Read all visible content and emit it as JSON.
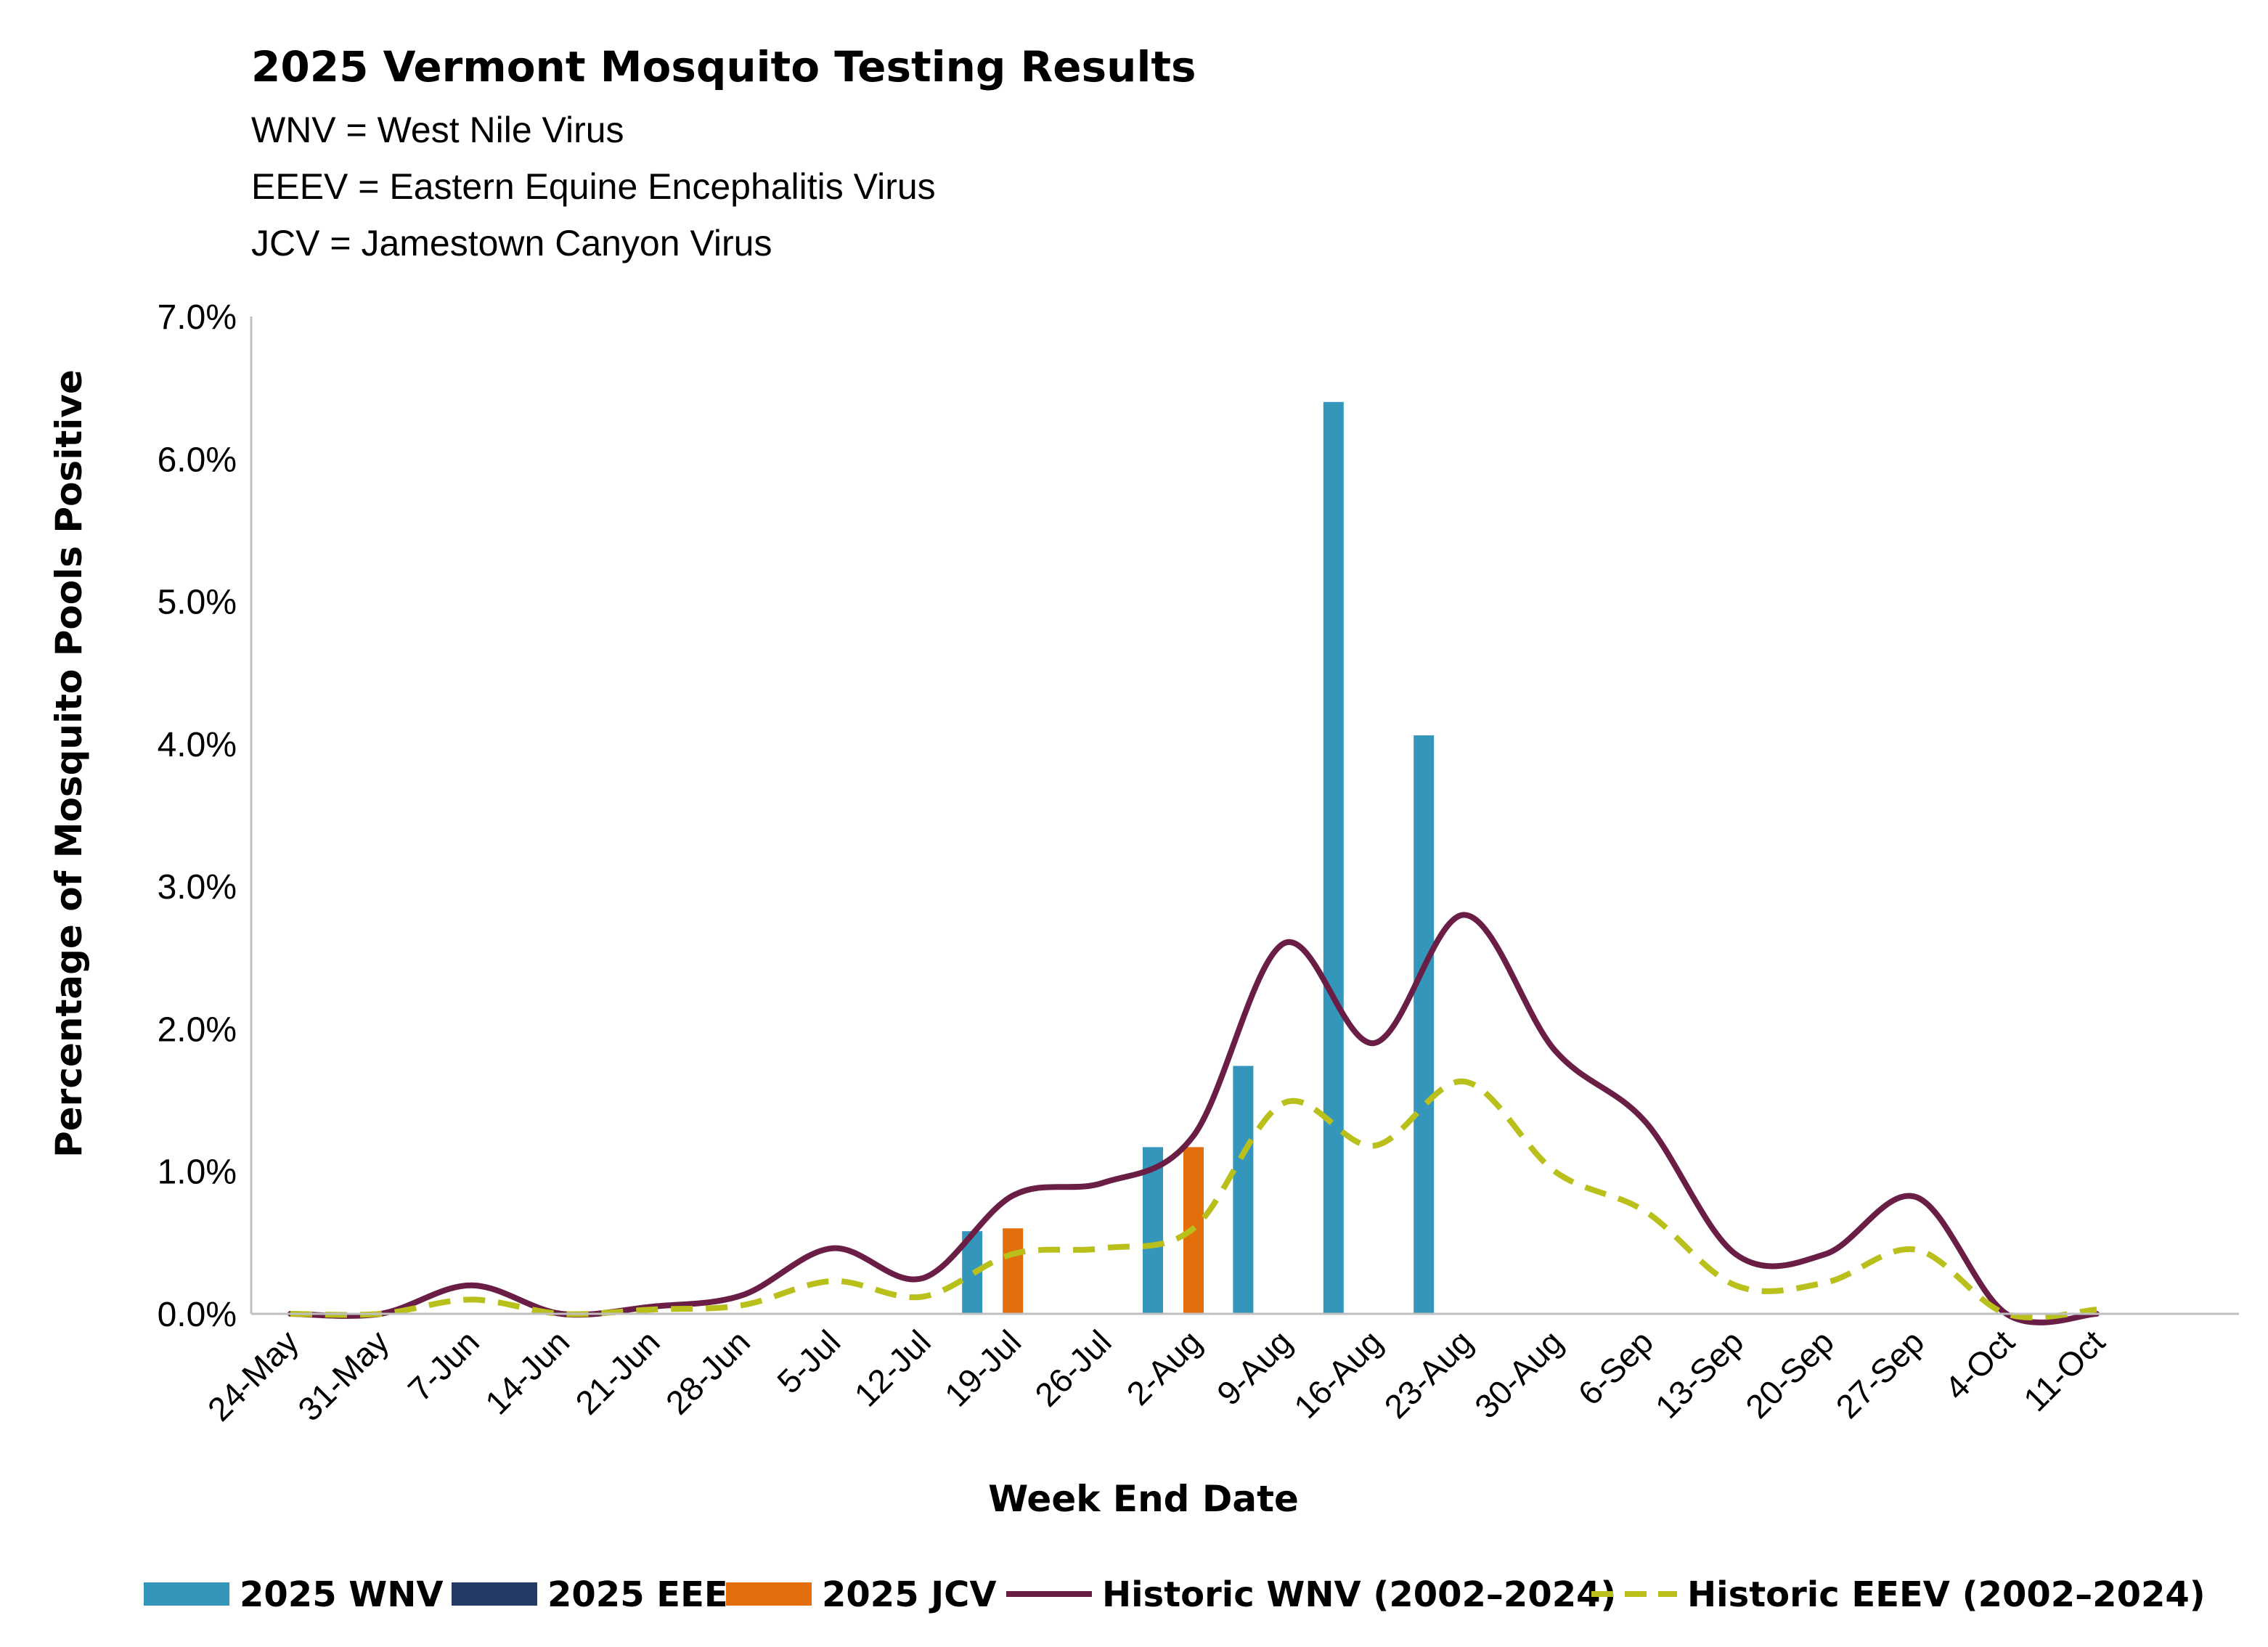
{
  "chart_data": {
    "type": "bar",
    "title": "2025 Vermont Mosquito Testing Results",
    "notes": [
      "WNV = West Nile Virus",
      "EEEV = Eastern Equine Encephalitis Virus",
      "JCV = Jamestown Canyon Virus"
    ],
    "xlabel": "Week End Date",
    "ylabel": "Percentage of Mosquito Pools Positive",
    "ylim": [
      0,
      0.07
    ],
    "yticks": [
      "0.0%",
      "1.0%",
      "2.0%",
      "3.0%",
      "4.0%",
      "5.0%",
      "6.0%",
      "7.0%"
    ],
    "categories": [
      "24-May",
      "31-May",
      "7-Jun",
      "14-Jun",
      "21-Jun",
      "28-Jun",
      "5-Jul",
      "12-Jul",
      "19-Jul",
      "26-Jul",
      "2-Aug",
      "9-Aug",
      "16-Aug",
      "23-Aug",
      "30-Aug",
      "6-Sep",
      "13-Sep",
      "20-Sep",
      "27-Sep",
      "4-Oct",
      "11-Oct"
    ],
    "grid": false,
    "legend": "bottom",
    "series": [
      {
        "name": "2025 WNV",
        "kind": "bar",
        "color": "#3596bc",
        "values": [
          0,
          0,
          0,
          0,
          0,
          0,
          0,
          0,
          0.0058,
          0,
          0.0117,
          0.0174,
          0.064,
          0.0406,
          0,
          0,
          0,
          0,
          0,
          0,
          0
        ]
      },
      {
        "name": "2025 EEE",
        "kind": "bar",
        "color": "#223a64",
        "values": [
          0,
          0,
          0,
          0,
          0,
          0,
          0,
          0,
          0,
          0,
          0,
          0,
          0,
          0,
          0,
          0,
          0,
          0,
          0,
          0,
          0
        ]
      },
      {
        "name": "2025 JCV",
        "kind": "bar",
        "color": "#e36e0c",
        "values": [
          0,
          0,
          0,
          0,
          0,
          0,
          0,
          0,
          0.006,
          0,
          0.0117,
          0,
          0,
          0,
          0,
          0,
          0,
          0,
          0,
          0,
          0
        ]
      },
      {
        "name": "Historic WNV (2002–2024)",
        "kind": "line",
        "style": "solid",
        "color": "#6b1e45",
        "values": [
          0,
          0,
          0.002,
          0,
          0.0005,
          0.0013,
          0.0046,
          0.0025,
          0.0083,
          0.0092,
          0.0125,
          0.026,
          0.019,
          0.028,
          0.0185,
          0.0135,
          0.0042,
          0.0042,
          0.0082,
          0,
          0
        ]
      },
      {
        "name": "Historic EEEV (2002–2024)",
        "kind": "line",
        "style": "dashed",
        "color": "#b9c01c",
        "values": [
          0,
          0,
          0.001,
          0,
          0.0003,
          0.0006,
          0.0023,
          0.0012,
          0.0042,
          0.0046,
          0.006,
          0.0148,
          0.0118,
          0.0163,
          0.01,
          0.0072,
          0.002,
          0.0022,
          0.0045,
          0,
          0.0003
        ]
      }
    ]
  }
}
